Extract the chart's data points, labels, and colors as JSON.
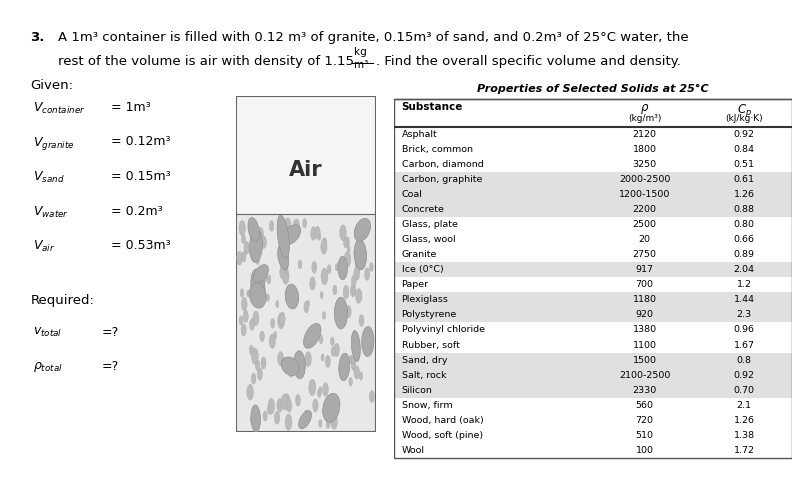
{
  "title_number": "3.",
  "title_text": "A 1m³ container is filled with 0.12 m³ of granite, 0.15m³ of sand, and 0.2m³ of 25°C water, the",
  "title_text2": "rest of the volume is air with density of 1.15",
  "title_units_num": "kg",
  "title_units_den": "m³",
  "title_end": ". Find the overall specific volume and density.",
  "given_label": "Given:",
  "given_items": [
    [
      "$V_{container}$",
      "= 1m³"
    ],
    [
      "$V_{granite}$",
      "= 0.12m³"
    ],
    [
      "$V_{sand}$",
      "= 0.15m³"
    ],
    [
      "$V_{water}$",
      "= 0.2m³"
    ],
    [
      "$V_{air}$",
      "= 0.53m³"
    ]
  ],
  "required_label": "Required:",
  "required_items": [
    [
      "$v_{total}$",
      "=?"
    ],
    [
      "$\\rho_{total}$",
      "=?"
    ]
  ],
  "air_label": "Air",
  "table_title": "Properties of Selected Solids at 25°C",
  "table_data": [
    [
      "Asphalt",
      "2120",
      "0.92"
    ],
    [
      "Brick, common",
      "1800",
      "0.84"
    ],
    [
      "Carbon, diamond",
      "3250",
      "0.51"
    ],
    [
      "Carbon, graphite",
      "2000-2500",
      "0.61"
    ],
    [
      "Coal",
      "1200-1500",
      "1.26"
    ],
    [
      "Concrete",
      "2200",
      "0.88"
    ],
    [
      "Glass, plate",
      "2500",
      "0.80"
    ],
    [
      "Glass, wool",
      "20",
      "0.66"
    ],
    [
      "Granite",
      "2750",
      "0.89"
    ],
    [
      "Ice (0°C)",
      "917",
      "2.04"
    ],
    [
      "Paper",
      "700",
      "1.2"
    ],
    [
      "Plexiglass",
      "1180",
      "1.44"
    ],
    [
      "Polystyrene",
      "920",
      "2.3"
    ],
    [
      "Polyvinyl chloride",
      "1380",
      "0.96"
    ],
    [
      "Rubber, soft",
      "1100",
      "1.67"
    ],
    [
      "Sand, dry",
      "1500",
      "0.8"
    ],
    [
      "Salt, rock",
      "2100-2500",
      "0.92"
    ],
    [
      "Silicon",
      "2330",
      "0.70"
    ],
    [
      "Snow, firm",
      "560",
      "2.1"
    ],
    [
      "Wood, hard (oak)",
      "720",
      "1.26"
    ],
    [
      "Wood, soft (pine)",
      "510",
      "1.38"
    ],
    [
      "Wool",
      "100",
      "1.72"
    ]
  ],
  "shaded_rows": [
    3,
    4,
    5,
    9,
    11,
    12,
    15,
    16,
    17
  ],
  "bg_color": "#ffffff",
  "table_shade_color": "#e0e0e0",
  "box_top_color": "#ffffff",
  "box_bottom_color": "#e8e8e8",
  "dot_color_large": "#aaaaaa",
  "dot_edge_large": "#909090",
  "dot_color_small": "#bbbbbb",
  "dot_edge_small": "#aaaaaa",
  "text_color": "#000000",
  "box_edge_color": "#666666"
}
